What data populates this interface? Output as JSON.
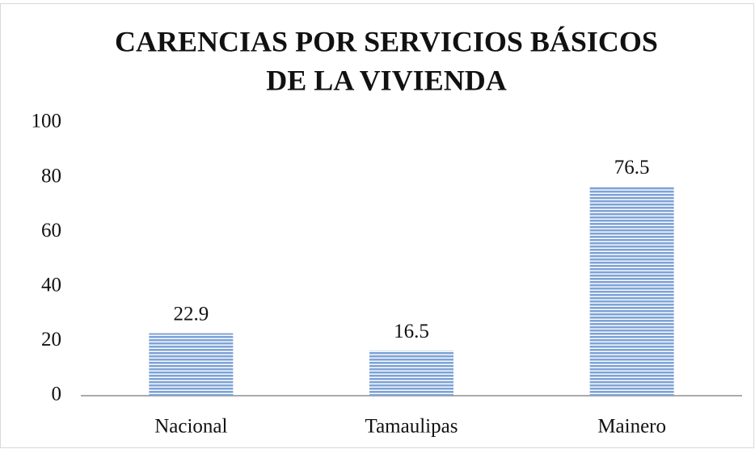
{
  "chart_data": {
    "type": "bar",
    "title": [
      "CARENCIAS POR SERVICIOS BÁSICOS",
      "DE LA VIVIENDA"
    ],
    "categories": [
      "Nacional",
      "Tamaulipas",
      "Mainero"
    ],
    "values": [
      22.9,
      16.5,
      76.5
    ],
    "color": "#7ea3d6",
    "ylim": [
      0,
      100
    ],
    "yticks": [
      0,
      20,
      40,
      60,
      80,
      100
    ],
    "grid": false
  }
}
